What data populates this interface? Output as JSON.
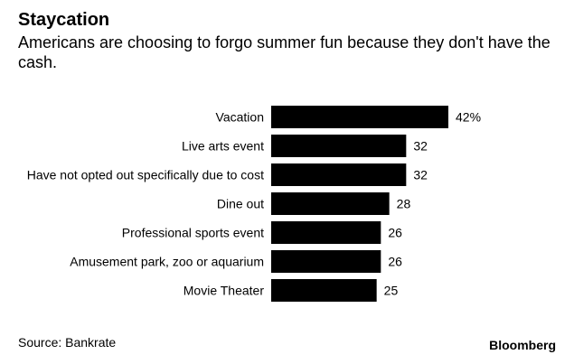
{
  "chart_data": {
    "type": "bar",
    "orientation": "horizontal",
    "title": "Staycation",
    "subtitle": "Americans are choosing to forgo summer fun because they don't have the cash.",
    "categories": [
      "Vacation",
      "Live arts event",
      "Have not opted out specifically due to cost",
      "Dine out",
      "Professional sports event",
      "Amusement park, zoo or aquarium",
      "Movie Theater"
    ],
    "values": [
      42,
      32,
      32,
      28,
      26,
      26,
      25
    ],
    "value_labels": [
      "42%",
      "32",
      "32",
      "28",
      "26",
      "26",
      "25"
    ],
    "xlim": [
      0,
      42
    ],
    "bar_color": "#000000",
    "grid": false,
    "source": "Source: Bankrate"
  },
  "footer": {
    "source": "Source: Bankrate",
    "brand": "Bloomberg"
  }
}
